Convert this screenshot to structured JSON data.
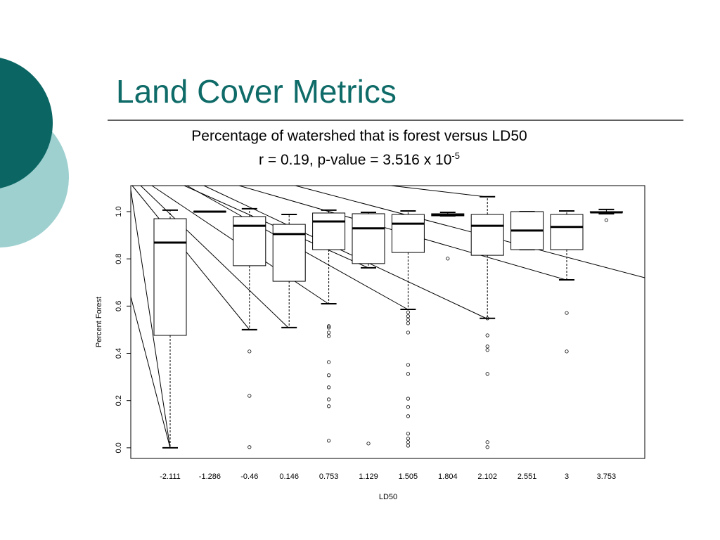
{
  "slide": {
    "title": "Land Cover Metrics"
  },
  "chart_data": {
    "type": "boxplot",
    "title": "Percentage of watershed that is forest versus LD50",
    "subtitle": "r = 0.19, p-value = 3.516 x 10",
    "subtitle_superscript": "-5",
    "x_label": "LD50",
    "y_label": "Percent Forest",
    "categories": [
      "-2.111",
      "-1.286",
      "-0.46",
      "0.146",
      "0.753",
      "1.129",
      "1.505",
      "1.804",
      "2.102",
      "2.551",
      "3",
      "3.753"
    ],
    "boxes": [
      {
        "whislo": 0.0,
        "q1": 0.476,
        "med": 0.869,
        "q3": 0.97,
        "whishi": 1.006,
        "fliers": []
      },
      {
        "whislo": 1.0,
        "q1": 1.0,
        "med": 1.0,
        "q3": 1.0,
        "whishi": 1.0,
        "fliers": []
      },
      {
        "whislo": 0.5,
        "q1": 0.771,
        "med": 0.94,
        "q3": 0.979,
        "whishi": 1.012,
        "fliers": [
          0.408,
          0.22,
          0.003
        ]
      },
      {
        "whislo": 0.509,
        "q1": 0.705,
        "med": 0.905,
        "q3": 0.946,
        "whishi": 0.988,
        "fliers": []
      },
      {
        "whislo": 0.61,
        "q1": 0.839,
        "med": 0.958,
        "q3": 0.994,
        "whishi": 1.006,
        "fliers": [
          0.515,
          0.509,
          0.488,
          0.473,
          0.363,
          0.307,
          0.256,
          0.205,
          0.176,
          0.03
        ]
      },
      {
        "whislo": 0.762,
        "q1": 0.78,
        "med": 0.929,
        "q3": 0.991,
        "whishi": 0.997,
        "fliers": [
          0.018
        ]
      },
      {
        "whislo": 0.586,
        "q1": 0.827,
        "med": 0.949,
        "q3": 0.988,
        "whishi": 1.003,
        "fliers": [
          0.574,
          0.557,
          0.542,
          0.527,
          0.488,
          0.351,
          0.313,
          0.208,
          0.173,
          0.134,
          0.06,
          0.039,
          0.024,
          0.009
        ]
      },
      {
        "whislo": 0.982,
        "q1": 0.982,
        "med": 0.985,
        "q3": 0.991,
        "whishi": 0.997,
        "fliers": [
          0.801
        ]
      },
      {
        "whislo": 0.548,
        "q1": 0.815,
        "med": 0.94,
        "q3": 0.988,
        "whishi": 1.063,
        "fliers": [
          0.548,
          0.476,
          0.429,
          0.414,
          0.313,
          0.024,
          0.003
        ]
      },
      {
        "whislo": 0.839,
        "q1": 0.839,
        "med": 0.92,
        "q3": 1.0,
        "whishi": 1.0,
        "fliers": []
      },
      {
        "whislo": 0.711,
        "q1": 0.839,
        "med": 0.935,
        "q3": 0.988,
        "whishi": 1.003,
        "fliers": [
          0.571,
          0.408
        ]
      },
      {
        "whislo": 0.991,
        "q1": 0.997,
        "med": 0.997,
        "q3": 1.0,
        "whishi": 1.009,
        "fliers": [
          0.964
        ]
      }
    ],
    "ylim": [
      -0.045,
      1.11
    ],
    "yticks": [
      {
        "value": 0,
        "label": "0.0"
      },
      0.2,
      0.4,
      0.6,
      0.8,
      {
        "value": 1,
        "label": "1.0"
      }
    ],
    "color": "#000000"
  }
}
